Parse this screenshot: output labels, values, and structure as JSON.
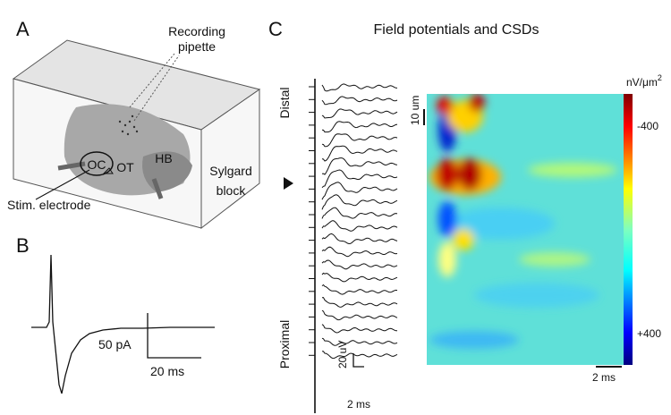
{
  "panel_a": {
    "letter": "A",
    "pipette_label": [
      "Recording",
      "pipette"
    ],
    "oc": "OC",
    "ot": "OT",
    "hb": "HB",
    "block_label": [
      "Sylgard",
      "block"
    ],
    "electrode_label": "Stim. electrode"
  },
  "panel_b": {
    "letter": "B",
    "current_scale": "50 pA",
    "time_scale": "20 ms"
  },
  "panel_c": {
    "letter": "C",
    "title": "Field potentials and CSDs",
    "distal": "Distal",
    "proximal": "Proximal",
    "voltage_scale": "20 uV",
    "trace_time_scale": "2 ms",
    "depth_scale": "10 um",
    "colorbar_unit": {
      "base": "nV/μm",
      "exponent": "2"
    },
    "colorbar_top": "-400",
    "colorbar_bottom": "+400",
    "map_time_scale": "2 ms"
  }
}
